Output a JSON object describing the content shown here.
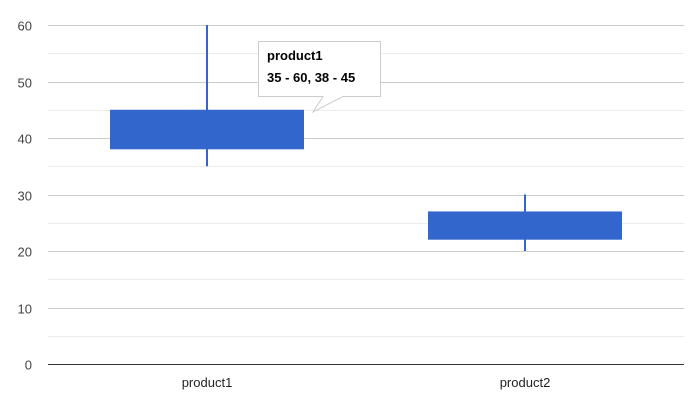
{
  "chart_data": {
    "type": "candlestick",
    "title": "",
    "xlabel": "",
    "ylabel": "",
    "ylim": [
      0,
      60
    ],
    "yticks": [
      0,
      10,
      20,
      30,
      40,
      50,
      60
    ],
    "minor_gridlines": true,
    "categories": [
      "product1",
      "product2"
    ],
    "series": [
      {
        "data": [
          {
            "category": "product1",
            "low": 35,
            "open": 38,
            "close": 45,
            "high": 60
          },
          {
            "category": "product2",
            "low": 20,
            "open": 22,
            "close": 27,
            "high": 30
          }
        ]
      }
    ],
    "tooltip": {
      "title": "product1",
      "value": "35 - 60, 38 - 45"
    }
  },
  "colors": {
    "candle": "#3366cc",
    "major_grid": "#cccccc",
    "minor_grid": "#ebebeb",
    "baseline": "#333333"
  }
}
